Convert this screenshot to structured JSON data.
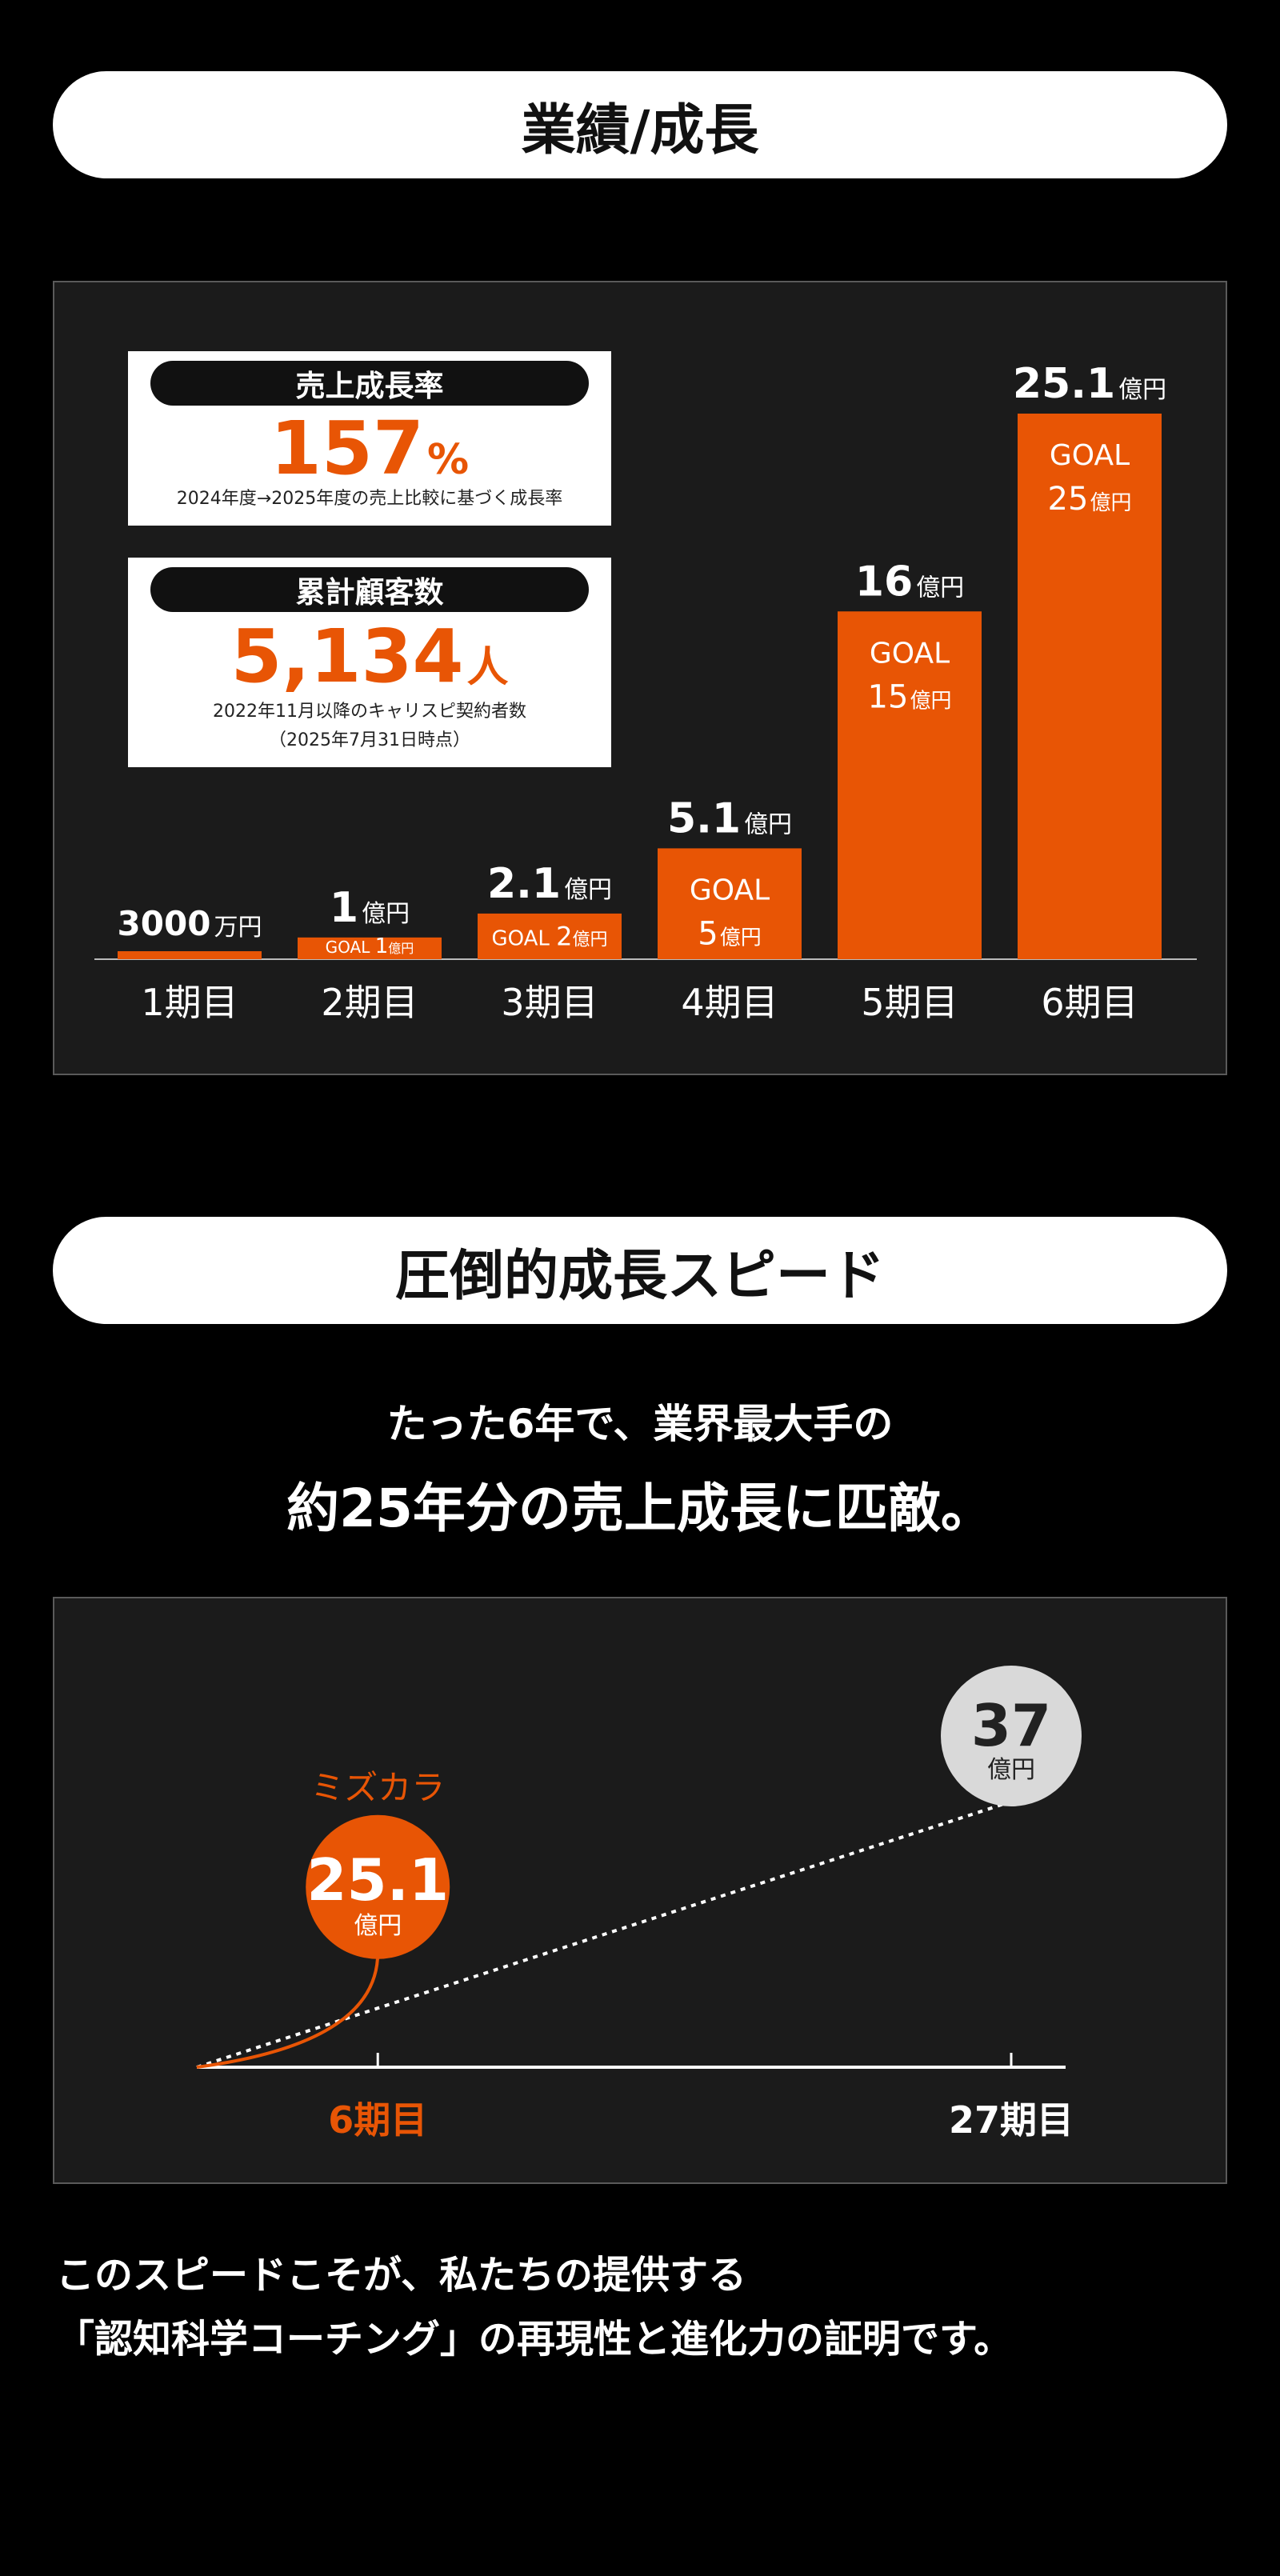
{
  "section1": {
    "title": "業績/成長"
  },
  "stats": {
    "growth": {
      "title": "売上成長率",
      "value": "157",
      "unit": "%",
      "note": "2024年度→2025年度の売上比較に基づく成長率"
    },
    "customers": {
      "title": "累計顧客数",
      "value": "5,134",
      "unit": "人",
      "note_line1": "2022年11月以降のキャリスピ契約者数",
      "note_line2": "（2025年7月31日時点）"
    }
  },
  "chart_data": [
    {
      "type": "bar",
      "categories": [
        "1期目",
        "2期目",
        "3期目",
        "4期目",
        "5期目",
        "6期目"
      ],
      "values": [
        0.3,
        1,
        2.1,
        5.1,
        16,
        25.1
      ],
      "value_labels": [
        {
          "num": "3000",
          "unit": "万円"
        },
        {
          "num": "1",
          "unit": "億円"
        },
        {
          "num": "2.1",
          "unit": "億円"
        },
        {
          "num": "5.1",
          "unit": "億円"
        },
        {
          "num": "16",
          "unit": "億円"
        },
        {
          "num": "25.1",
          "unit": "億円"
        }
      ],
      "goal_label": "GOAL",
      "goals": [
        null,
        {
          "num": "1",
          "unit": "億円"
        },
        {
          "num": "2",
          "unit": "億円"
        },
        {
          "num": "5",
          "unit": "億円"
        },
        {
          "num": "15",
          "unit": "億円"
        },
        {
          "num": "25",
          "unit": "億円"
        }
      ],
      "ylim": [
        0,
        25.1
      ],
      "bar_color": "#e85505",
      "grid": false
    },
    {
      "type": "line",
      "x_ticks": [
        "6期目",
        "27期目"
      ],
      "series": [
        {
          "name": "ミズカラ",
          "x": [
            0,
            6
          ],
          "y": [
            0,
            25.1
          ],
          "color": "#e85505",
          "style": "solid",
          "value_label": "25.1",
          "unit": "億円"
        },
        {
          "name": "",
          "x": [
            0,
            27
          ],
          "y": [
            0,
            37
          ],
          "color": "#ffffff",
          "style": "dotted",
          "value_label": "37",
          "unit": "億円"
        }
      ]
    }
  ],
  "section2": {
    "title": "圧倒的成長スピード",
    "lead_line1": "たった6年で、業界最大手の",
    "lead_line2": "約25年分の売上成長に匹敵。"
  },
  "closing": {
    "line1": "このスピードこそが、私たちの提供する",
    "line2": "「認知科学コーチング」の再現性と進化力の証明です。"
  },
  "colors": {
    "accent": "#e85505",
    "panel": "#1b1b1b",
    "bubble_gray": "#d9d9d9"
  }
}
